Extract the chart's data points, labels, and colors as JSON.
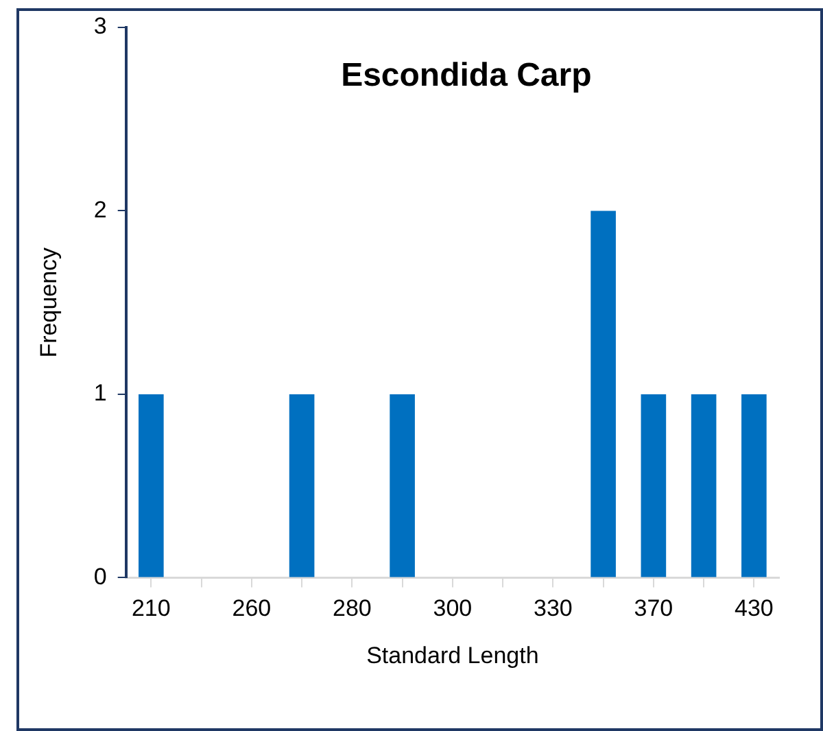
{
  "chart_data": {
    "type": "bar",
    "title": "Escondida Carp",
    "xlabel": "Standard Length",
    "ylabel": "Frequency",
    "categories": [
      "210",
      null,
      "260",
      null,
      "280",
      null,
      "300",
      null,
      "330",
      null,
      "370",
      null,
      "430"
    ],
    "values": [
      1,
      0,
      0,
      1,
      0,
      1,
      0,
      0,
      0,
      2,
      1,
      1,
      1
    ],
    "color": "#0070c0",
    "ylim": [
      0,
      3
    ],
    "yticks": [
      0,
      1,
      2,
      3
    ],
    "grid": false,
    "legend": false
  }
}
